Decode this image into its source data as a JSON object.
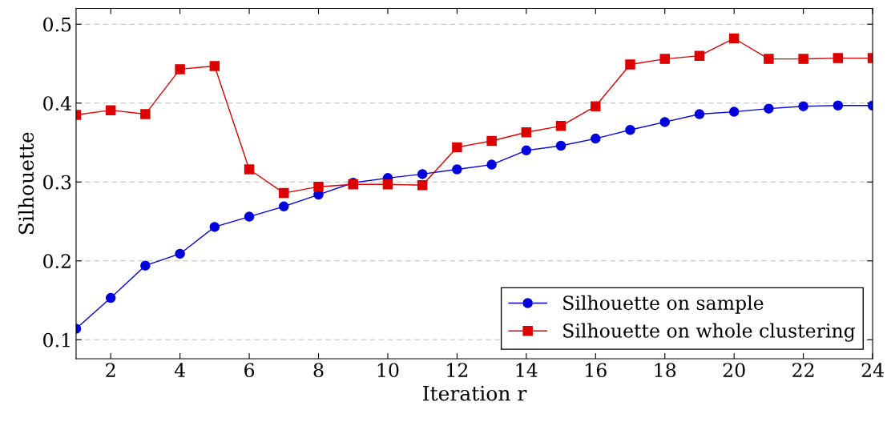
{
  "chart_data": {
    "type": "line",
    "xlabel": "Iteration r",
    "ylabel": "Silhouette",
    "x": [
      1,
      2,
      3,
      4,
      5,
      6,
      7,
      8,
      9,
      10,
      11,
      12,
      13,
      14,
      15,
      16,
      17,
      18,
      19,
      20,
      21,
      22,
      23,
      24
    ],
    "series": [
      {
        "name": "Silhouette on sample",
        "color": "#0000dd",
        "marker": "circle",
        "values": [
          0.114,
          0.153,
          0.194,
          0.209,
          0.243,
          0.256,
          0.269,
          0.284,
          0.299,
          0.305,
          0.31,
          0.316,
          0.322,
          0.34,
          0.346,
          0.355,
          0.366,
          0.376,
          0.386,
          0.389,
          0.393,
          0.396,
          0.397,
          0.397
        ]
      },
      {
        "name": "Silhouette on whole clustering",
        "color": "#dd0000",
        "marker": "square",
        "values": [
          0.385,
          0.391,
          0.386,
          0.443,
          0.447,
          0.316,
          0.286,
          0.294,
          0.297,
          0.297,
          0.296,
          0.344,
          0.352,
          0.363,
          0.371,
          0.396,
          0.449,
          0.456,
          0.46,
          0.482,
          0.456,
          0.456,
          0.457,
          0.457
        ]
      }
    ],
    "xlim": [
      1,
      24
    ],
    "xticks": [
      2,
      4,
      6,
      8,
      10,
      12,
      14,
      16,
      18,
      20,
      22,
      24
    ],
    "ylim": [
      0.076,
      0.52
    ],
    "yticks": [
      0.1,
      0.2,
      0.3,
      0.4,
      0.5
    ],
    "grid": "y",
    "legend": "bottom right",
    "line_style": "solid"
  }
}
